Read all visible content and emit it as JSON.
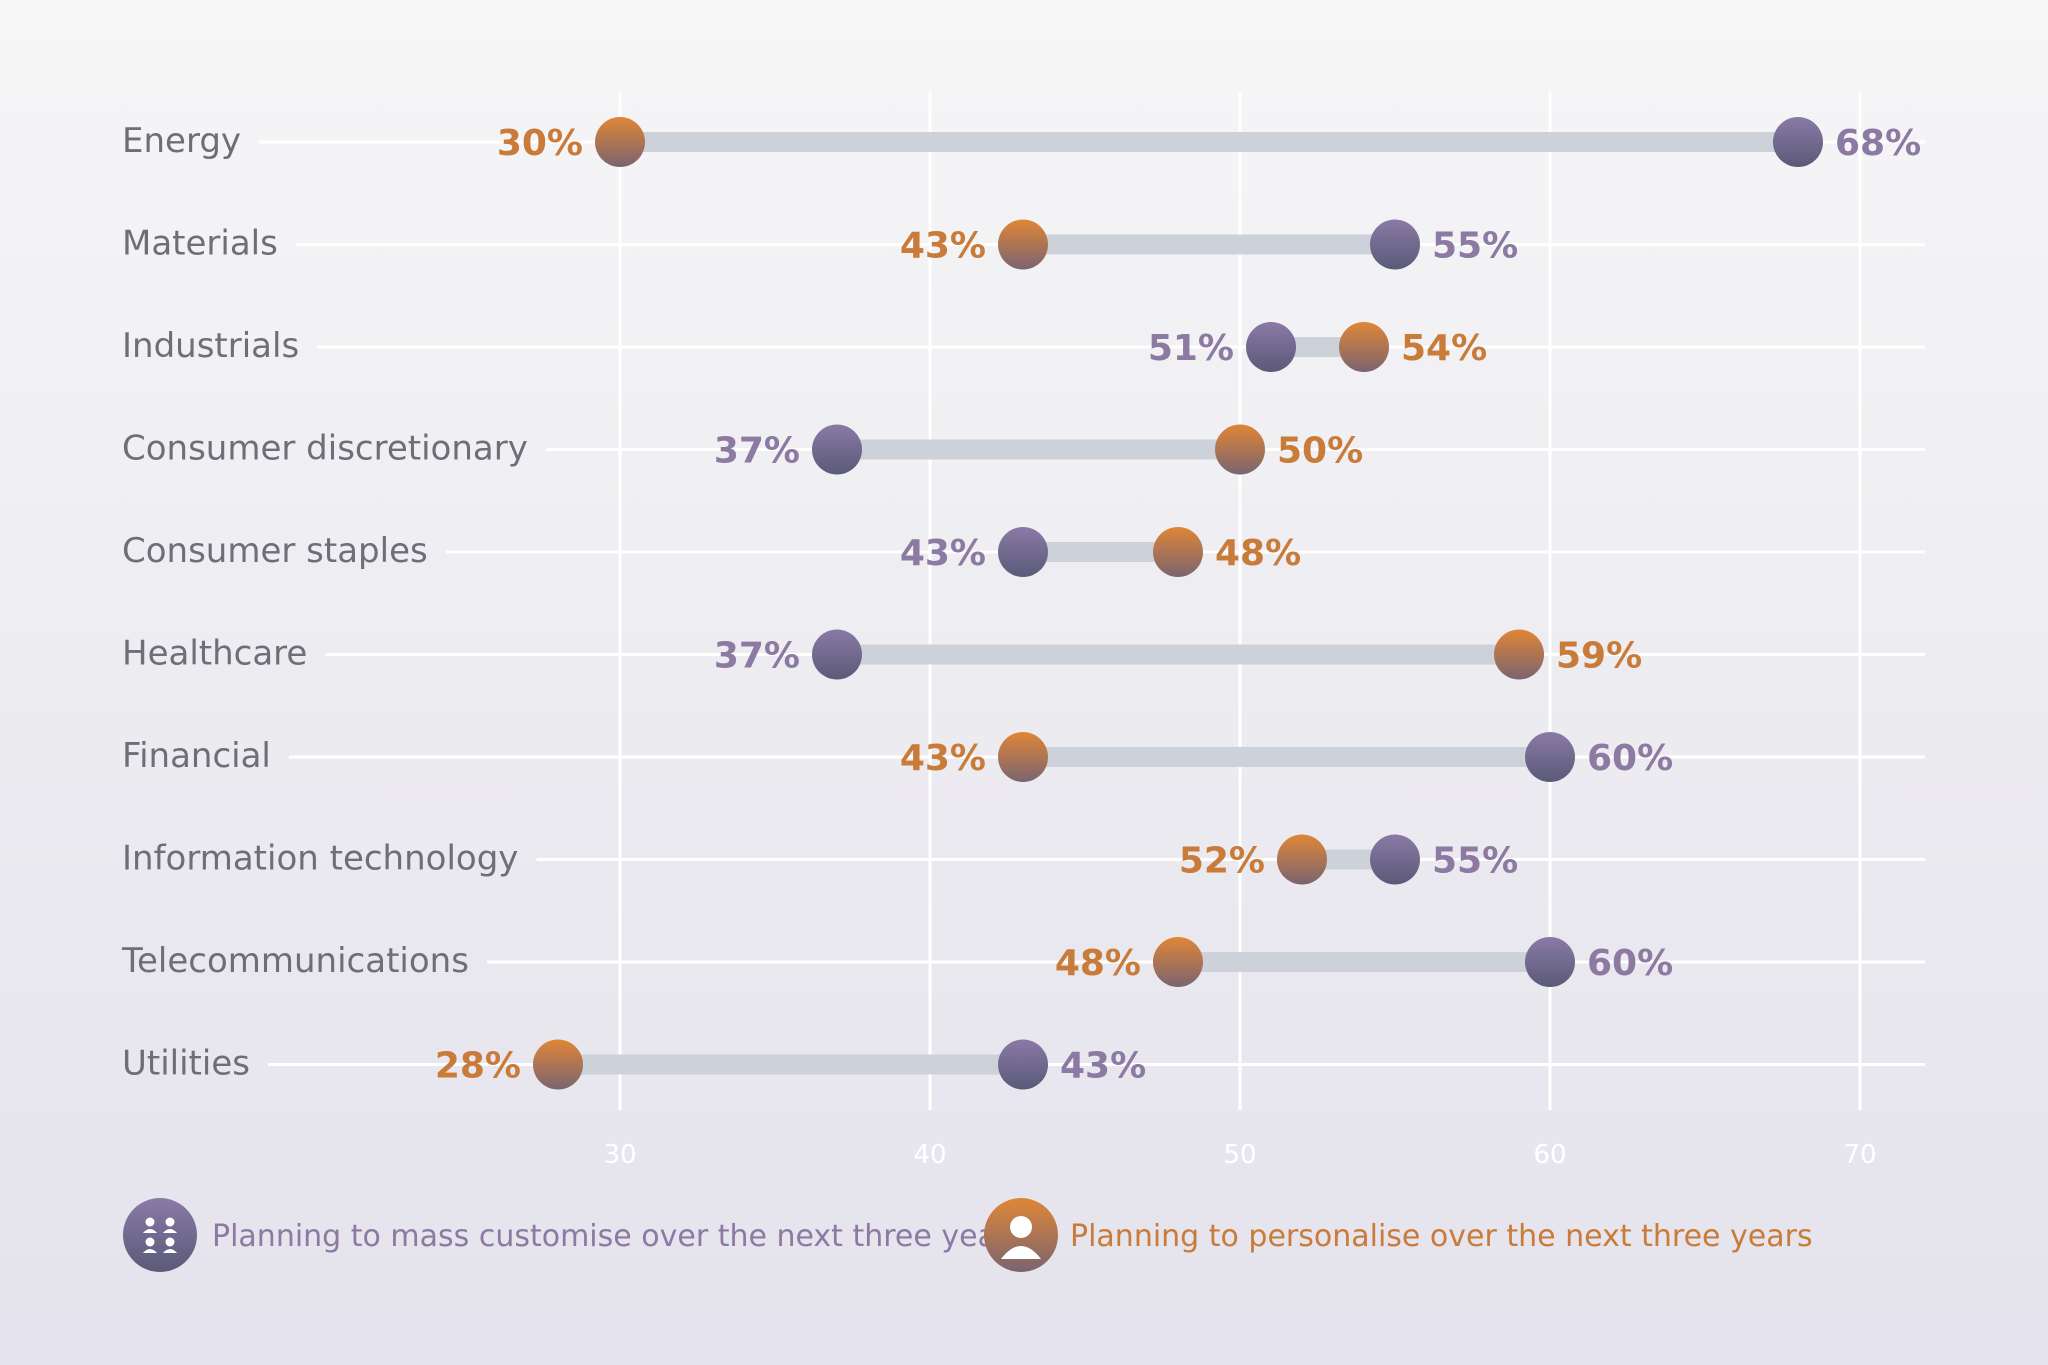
{
  "chart_data": {
    "type": "dumbbell",
    "title": "",
    "xlabel": "",
    "ylabel": "",
    "xlim": [
      18,
      73
    ],
    "xticks": [
      30,
      40,
      50,
      60,
      70
    ],
    "grid": true,
    "legend_placement": "bottom-left",
    "value_suffix": "%",
    "categories": [
      "Energy",
      "Materials",
      "Industrials",
      "Consumer discretionary",
      "Consumer staples",
      "Healthcare",
      "Financial",
      "Information technology",
      "Telecommunications",
      "Utilities"
    ],
    "series": [
      {
        "name": "Planning to mass customise over the next three years",
        "color": "#8a7aa6",
        "color_dark": "#5a5a78",
        "label_color": "#8c7aa3",
        "icon": "group-people-icon",
        "values": [
          68,
          55,
          51,
          37,
          43,
          37,
          60,
          55,
          60,
          43
        ]
      },
      {
        "name": "Planning to personalise over the next three years",
        "color": "#d9823a",
        "color_dark": "#7a6470",
        "label_color": "#c97b3a",
        "icon": "person-icon",
        "values": [
          30,
          43,
          54,
          50,
          48,
          59,
          43,
          52,
          48,
          28
        ]
      }
    ]
  }
}
